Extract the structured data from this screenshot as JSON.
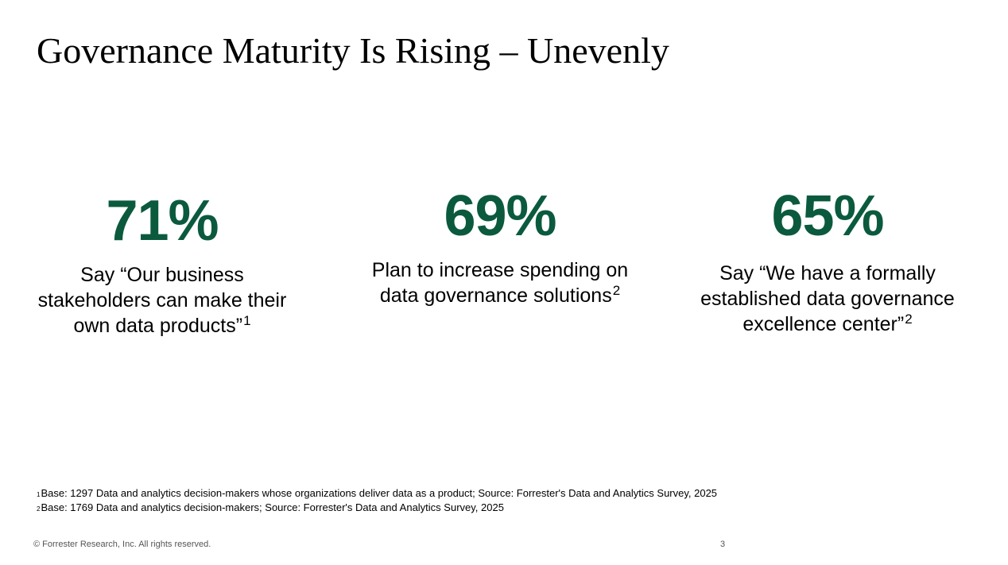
{
  "slide": {
    "title": "Governance Maturity Is Rising – Unevenly",
    "page_number": "3",
    "copyright": "© Forrester Research, Inc. All rights reserved.",
    "accent_color": "#0b5a3e"
  },
  "stats": [
    {
      "value": "71%",
      "line1": "Say “Our business",
      "line2": "stakeholders can make their",
      "line3": "own data products”",
      "note": "1"
    },
    {
      "value": "69%",
      "line1": "Plan to increase spending on",
      "line2": "data governance solutions",
      "note": "2"
    },
    {
      "value": "65%",
      "line1": "Say “We have a formally",
      "line2": "established data governance",
      "line3": "excellence center”",
      "note": "2"
    }
  ],
  "footnotes": [
    {
      "marker": "1",
      "text": "Base: 1297 Data and analytics decision-makers whose organizations deliver data as a product; Source: Forrester's Data and Analytics Survey, 2025"
    },
    {
      "marker": "2",
      "text": "Base: 1769 Data and analytics decision-makers; Source: Forrester's Data and Analytics Survey, 2025"
    }
  ]
}
